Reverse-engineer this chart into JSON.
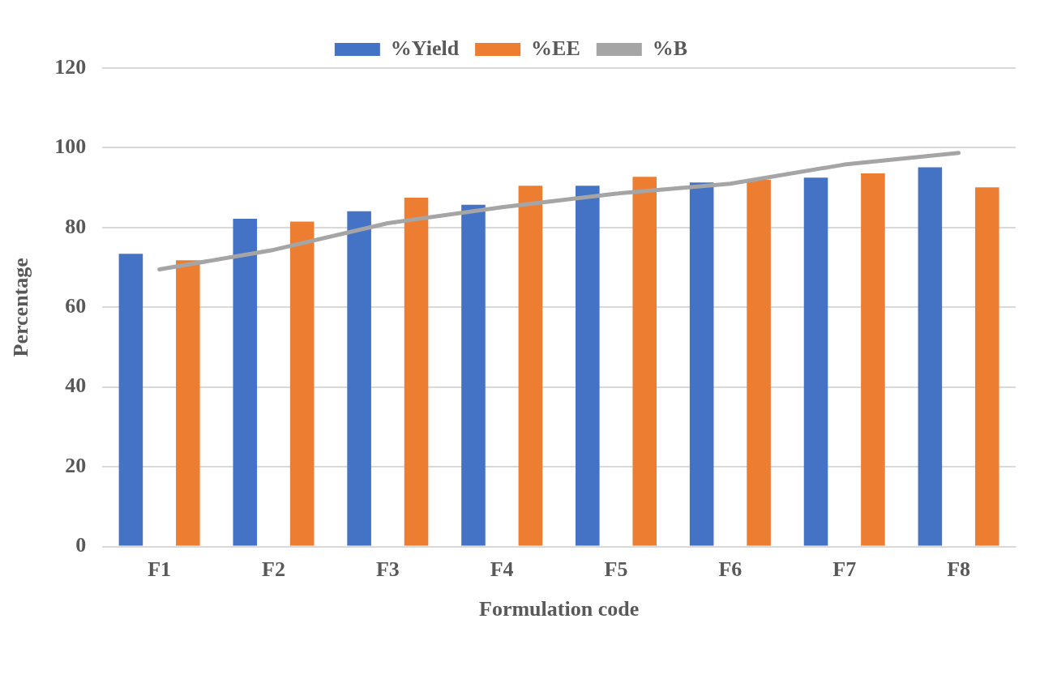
{
  "chart_data": {
    "type": "bar",
    "xlabel": "Formulation code",
    "ylabel": "Percentage",
    "categories": [
      "F1",
      "F2",
      "F3",
      "F4",
      "F5",
      "F6",
      "F7",
      "F8"
    ],
    "series": [
      {
        "name": "%Yield",
        "color": "#4472c4",
        "values": [
          73.4,
          82.2,
          84.1,
          85.7,
          90.5,
          91.3,
          92.5,
          95.1
        ]
      },
      {
        "name": "%EE",
        "color": "#ed7d31",
        "values": [
          71.8,
          81.5,
          87.5,
          90.5,
          92.7,
          92.0,
          93.6,
          90.1
        ]
      },
      {
        "name": "%B",
        "type": "line",
        "color": "#a5a5a5",
        "values": [
          69.5,
          74.4,
          81.1,
          85.1,
          88.5,
          91.0,
          95.8,
          98.7
        ],
        "marker": "none"
      }
    ],
    "ylim": [
      0,
      120
    ],
    "yticks": [
      0,
      20,
      40,
      60,
      80,
      100,
      120
    ],
    "grid": "y",
    "legend": "top"
  }
}
